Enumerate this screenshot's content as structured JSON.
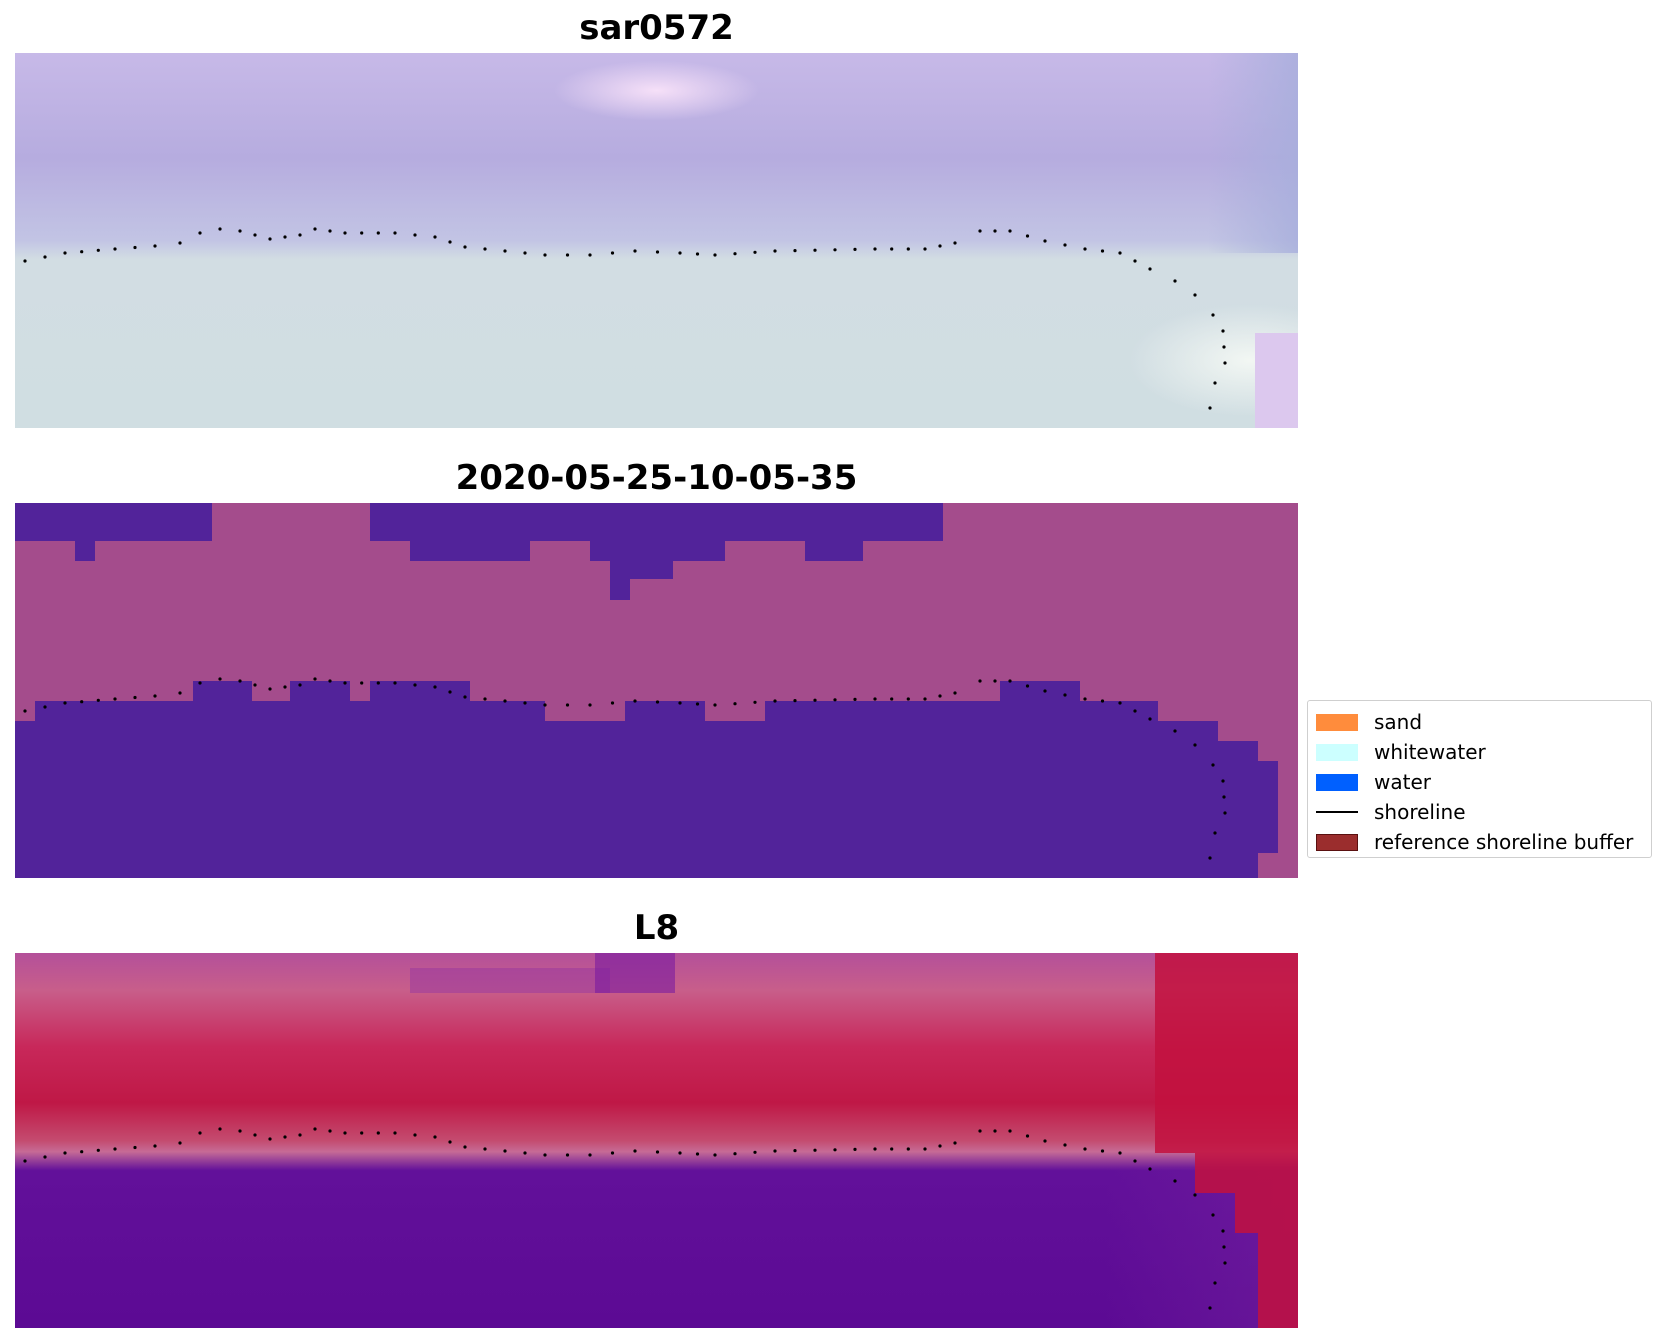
{
  "panels": [
    {
      "title": "sar0572"
    },
    {
      "title": "2020-05-25-10-05-35"
    },
    {
      "title": "L8"
    }
  ],
  "legend": {
    "items": [
      {
        "label": "sand",
        "color": "#ff8c3c",
        "kind": "patch"
      },
      {
        "label": "whitewater",
        "color": "#ccffff",
        "kind": "patch"
      },
      {
        "label": "water",
        "color": "#0060ff",
        "kind": "patch"
      },
      {
        "label": "shoreline",
        "color": "#000000",
        "kind": "line"
      },
      {
        "label": "reference shoreline buffer",
        "color": "#9b2d2d",
        "kind": "patch"
      }
    ]
  },
  "colors": {
    "rgb_land": "#b7acdf",
    "rgb_beach": "#d4e0e3",
    "class_land": "#a44c8c",
    "class_water": "#52239a",
    "ndwi_land": "#c41f4d",
    "ndwi_water": "#60108e"
  }
}
